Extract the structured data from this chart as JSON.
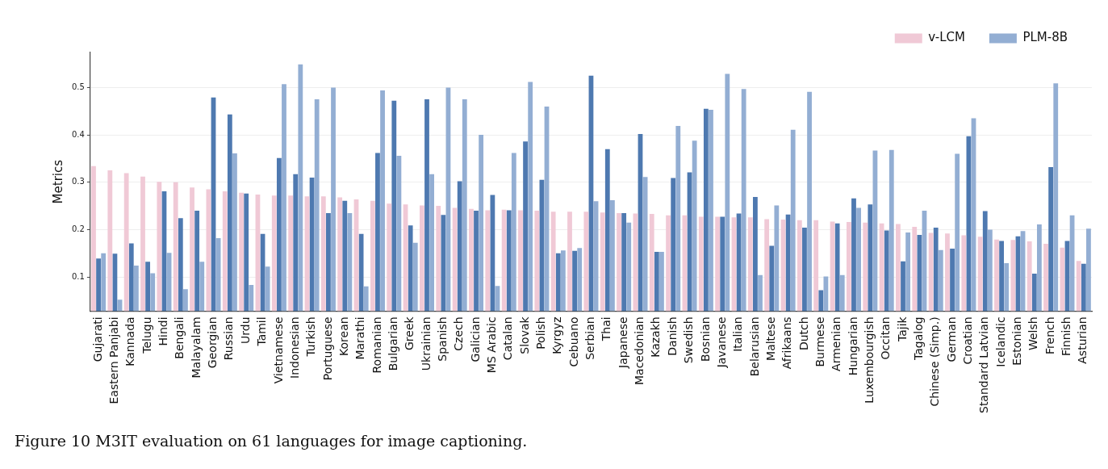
{
  "chart_data": {
    "type": "bar",
    "ylabel": "Metrics",
    "ylim": [
      0.028,
      0.574
    ],
    "yticks": [
      0.1,
      0.2,
      0.3,
      0.4,
      0.5
    ],
    "grid": "y",
    "legend": "top right",
    "annotations": [
      "Figure 10 M3IT evaluation on 61 languages for image captioning."
    ],
    "categories": [
      "Gujarati",
      "Eastern Panjabi",
      "Kannada",
      "Telugu",
      "Hindi",
      "Bengali",
      "Malayalam",
      "Georgian",
      "Russian",
      "Urdu",
      "Tamil",
      "Vietnamese",
      "Indonesian",
      "Turkish",
      "Portuguese",
      "Korean",
      "Marathi",
      "Romanian",
      "Bulgarian",
      "Greek",
      "Ukrainian",
      "Spanish",
      "Czech",
      "Galician",
      "MS Arabic",
      "Catalan",
      "Slovak",
      "Polish",
      "Kyrgyz",
      "Cebuano",
      "Serbian",
      "Thai",
      "Japanese",
      "Macedonian",
      "Kazakh",
      "Danish",
      "Swedish",
      "Bosnian",
      "Javanese",
      "Italian",
      "Belarusian",
      "Maltese",
      "Afrikaans",
      "Dutch",
      "Burmese",
      "Armenian",
      "Hungarian",
      "Luxembourgish",
      "Occitan",
      "Tajik",
      "Tagalog",
      "Chinese (Simp.)",
      "German",
      "Croatian",
      "Standard Latvian",
      "Icelandic",
      "Estonian",
      "Welsh",
      "French",
      "Finnish",
      "Asturian"
    ],
    "series": [
      {
        "name": "v-LCM",
        "color": "#f0c9d6",
        "values": [
          0.334,
          0.325,
          0.319,
          0.312,
          0.301,
          0.3,
          0.289,
          0.285,
          0.281,
          0.278,
          0.274,
          0.272,
          0.272,
          0.27,
          0.27,
          0.268,
          0.264,
          0.261,
          0.255,
          0.253,
          0.251,
          0.25,
          0.246,
          0.244,
          0.241,
          0.242,
          0.241,
          0.24,
          0.238,
          0.238,
          0.238,
          0.236,
          0.235,
          0.234,
          0.233,
          0.23,
          0.23,
          0.227,
          0.227,
          0.226,
          0.226,
          0.222,
          0.221,
          0.22,
          0.22,
          0.217,
          0.216,
          0.215,
          0.213,
          0.212,
          0.206,
          0.193,
          0.192,
          0.188,
          0.185,
          0.179,
          0.178,
          0.175,
          0.17,
          0.162,
          0.134
        ]
      },
      {
        "color": "#4e79b0",
        "values": [
          0.139,
          0.149,
          0.171,
          0.132,
          0.281,
          0.224,
          0.24,
          0.479,
          0.443,
          0.276,
          0.191,
          0.351,
          0.317,
          0.31,
          0.235,
          0.261,
          0.191,
          0.362,
          0.472,
          0.209,
          0.475,
          0.231,
          0.302,
          0.24,
          0.273,
          0.241,
          0.386,
          0.305,
          0.15,
          0.155,
          0.525,
          0.37,
          0.235,
          0.402,
          0.153,
          0.309,
          0.321,
          0.455,
          0.227,
          0.234,
          0.269,
          0.166,
          0.232,
          0.204,
          0.072,
          0.213,
          0.266,
          0.253,
          0.198,
          0.133,
          0.189,
          0.204,
          0.16,
          0.397,
          0.239,
          0.176,
          0.186,
          0.107,
          0.332,
          0.176,
          0.128
        ]
      },
      {
        "name": "PLM-8B",
        "color": "#93aed3",
        "values": [
          0.15,
          0.052,
          0.124,
          0.108,
          0.151,
          0.074,
          0.132,
          0.182,
          0.361,
          0.083,
          0.122,
          0.507,
          0.549,
          0.475,
          0.5,
          0.235,
          0.08,
          0.494,
          0.356,
          0.172,
          0.317,
          0.5,
          0.475,
          0.4,
          0.081,
          0.362,
          0.512,
          0.46,
          0.156,
          0.161,
          0.26,
          0.262,
          0.215,
          0.311,
          0.153,
          0.419,
          0.388,
          0.453,
          0.529,
          0.497,
          0.104,
          0.251,
          0.411,
          0.491,
          0.101,
          0.104,
          0.246,
          0.367,
          0.368,
          0.194,
          0.24,
          0.157,
          0.36,
          0.435,
          0.2,
          0.129,
          0.197,
          0.211,
          0.509,
          0.23,
          0.202
        ]
      }
    ]
  }
}
